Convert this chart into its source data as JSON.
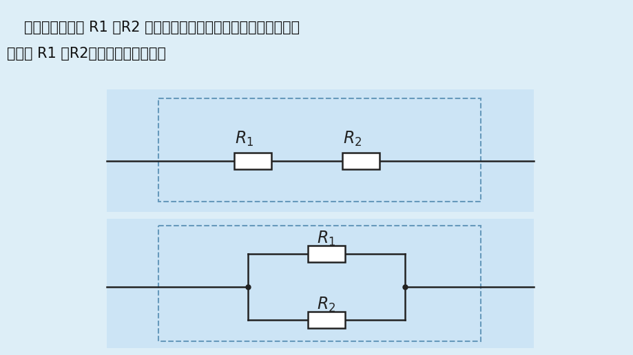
{
  "bg_color": "#ddeef7",
  "panel_bg": "#cce4f5",
  "dashed_box_color": "#6699bb",
  "line_color": "#222222",
  "text_color": "#111111",
  "title_line1": "如果把两个电阻 R1 、R2 串联或并联后看成一个电阻，你认为这个",
  "title_line2": "电阻跟 R1 、R2应该是怎样的关系？",
  "title_fontsize": 15,
  "r1_label_series": "R_1",
  "r2_label_series": "R_2",
  "r1_label_parallel": "R_1",
  "r2_label_parallel": "R_2"
}
